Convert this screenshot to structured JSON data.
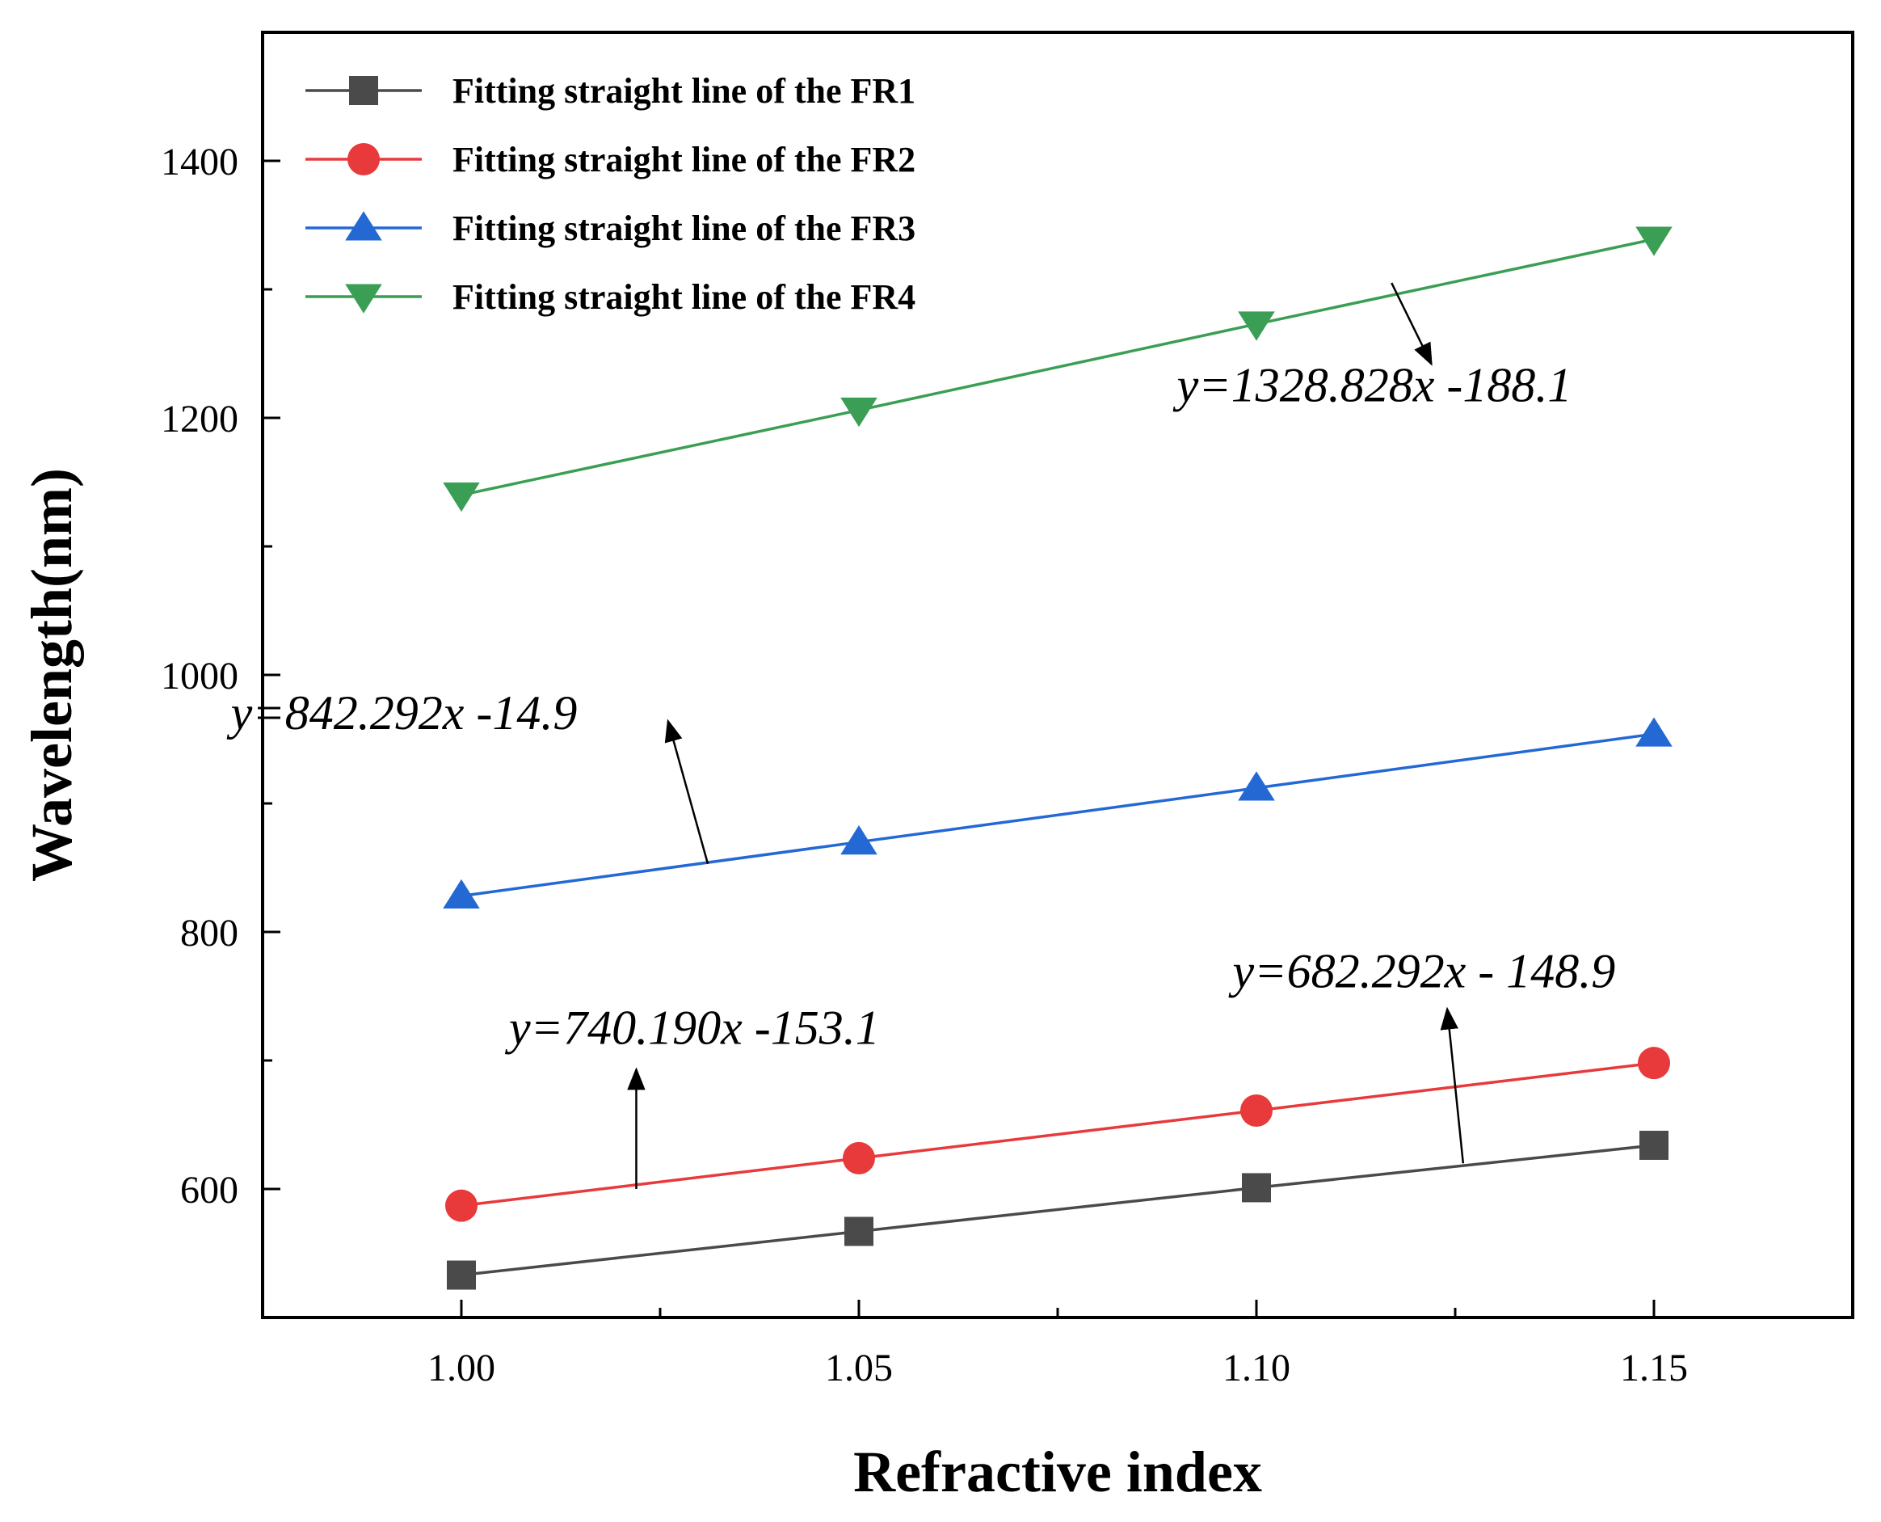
{
  "chart_data": {
    "type": "line",
    "xlabel": "Refractive index",
    "ylabel": "Wavelength(nm)",
    "xlim": [
      0.975,
      1.175
    ],
    "ylim": [
      500,
      1500
    ],
    "x_ticks": [
      {
        "value": 1.0,
        "label": "1.00"
      },
      {
        "value": 1.05,
        "label": "1.05"
      },
      {
        "value": 1.1,
        "label": "1.10"
      },
      {
        "value": 1.15,
        "label": "1.15"
      }
    ],
    "x_minor_ticks": [
      1.025,
      1.075,
      1.125
    ],
    "y_ticks": [
      {
        "value": 600,
        "label": "600"
      },
      {
        "value": 800,
        "label": "800"
      },
      {
        "value": 1000,
        "label": "1000"
      },
      {
        "value": 1200,
        "label": "1200"
      },
      {
        "value": 1400,
        "label": "1400"
      }
    ],
    "y_minor_ticks": [
      700,
      900,
      1100,
      1300
    ],
    "grid": false,
    "legend_position": "top-left",
    "x": [
      1.0,
      1.05,
      1.1,
      1.15
    ],
    "series": [
      {
        "name": "Fitting straight line of the FR1",
        "color": "#4a4a4a",
        "marker": "square",
        "values": [
          533,
          567,
          601,
          634
        ]
      },
      {
        "name": "Fitting straight line of the FR2",
        "color": "#e8393b",
        "marker": "circle",
        "values": [
          587,
          624,
          661,
          698
        ]
      },
      {
        "name": "Fitting straight line of the FR3",
        "color": "#2468d4",
        "marker": "triangle-up",
        "values": [
          828,
          870,
          912,
          954
        ]
      },
      {
        "name": "Fitting straight line of the FR4",
        "color": "#3a9e54",
        "marker": "triangle-down",
        "values": [
          1140,
          1206,
          1273,
          1339
        ]
      }
    ],
    "annotations": [
      {
        "text": "y=1328.828x -188.1",
        "text_at": [
          1.09,
          1213
        ],
        "arrow_from": [
          1.117,
          1305
        ],
        "arrow_to": [
          1.122,
          1242
        ]
      },
      {
        "text": "y=842.292x -14.9",
        "text_at": [
          0.971,
          958
        ],
        "arrow_from": [
          1.031,
          853
        ],
        "arrow_to": [
          1.026,
          964
        ]
      },
      {
        "text": "y=740.190x -153.1",
        "text_at": [
          1.006,
          713
        ],
        "arrow_from": [
          1.022,
          600
        ],
        "arrow_to": [
          1.022,
          693
        ]
      },
      {
        "text": "y=682.292x - 148.9",
        "text_at": [
          1.097,
          757
        ],
        "arrow_from": [
          1.126,
          620
        ],
        "arrow_to": [
          1.124,
          740
        ]
      }
    ]
  }
}
